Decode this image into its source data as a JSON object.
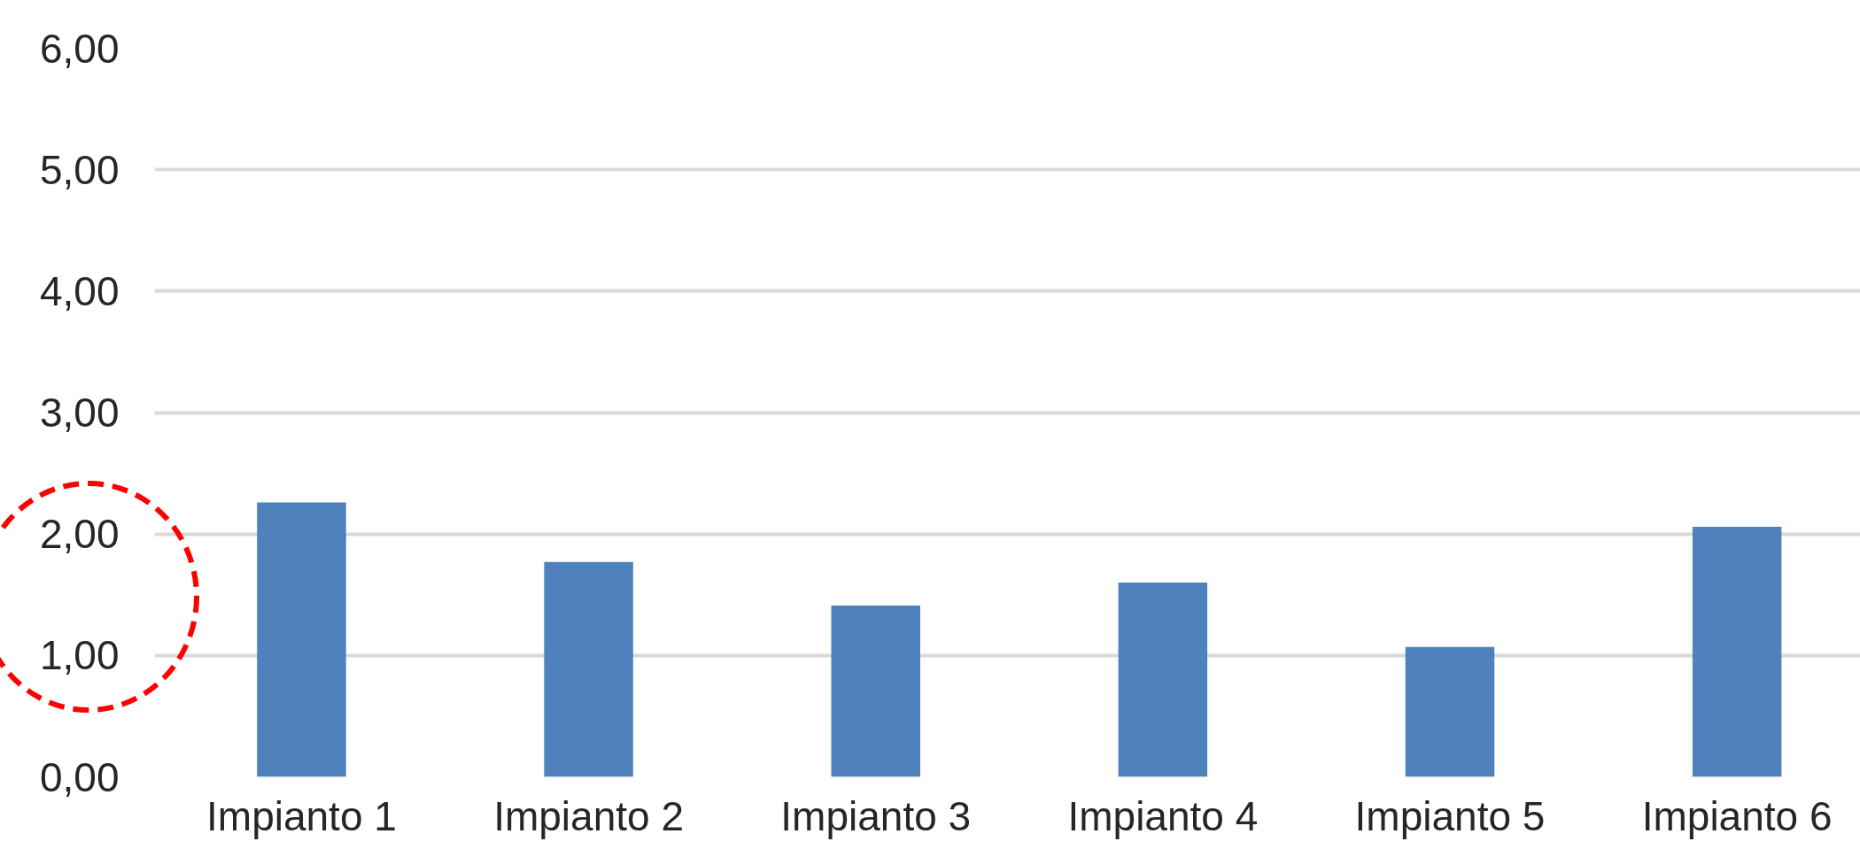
{
  "chart_data": {
    "type": "bar",
    "categories": [
      "Impianto 1",
      "Impianto 2",
      "Impianto 3",
      "Impianto 4",
      "Impianto 5",
      "Impianto 6"
    ],
    "values": [
      2.26,
      1.77,
      1.41,
      1.6,
      1.07,
      2.06
    ],
    "color": "#4f81bd",
    "ylim": [
      0,
      6
    ],
    "yticks": [
      {
        "value": 0,
        "label": "0,00"
      },
      {
        "value": 1,
        "label": "1,00"
      },
      {
        "value": 2,
        "label": "2,00"
      },
      {
        "value": 3,
        "label": "3,00"
      },
      {
        "value": 4,
        "label": "4,00"
      },
      {
        "value": 5,
        "label": "5,00"
      },
      {
        "value": 6,
        "label": "6,00"
      }
    ],
    "grid": "y"
  }
}
